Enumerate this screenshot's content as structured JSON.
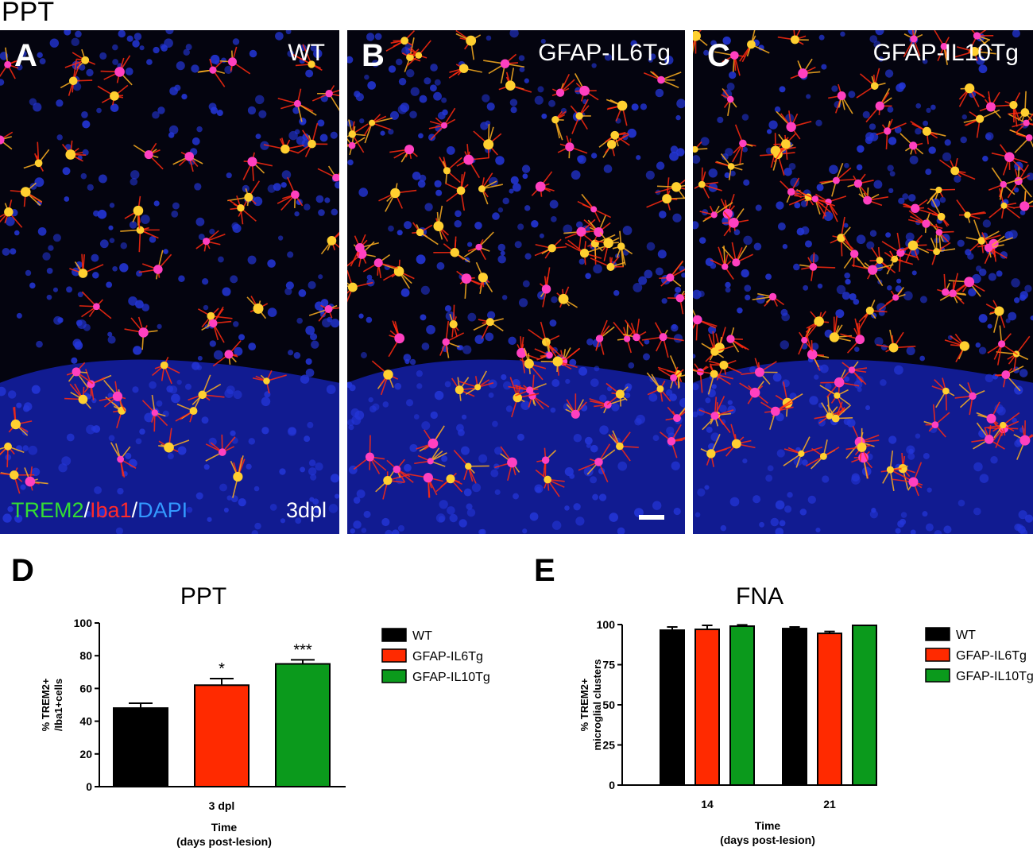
{
  "figure_title": "PPT",
  "panels": [
    {
      "letter": "A",
      "label": "WT"
    },
    {
      "letter": "B",
      "label": "GFAP-IL6Tg"
    },
    {
      "letter": "C",
      "label": "GFAP-IL10Tg"
    }
  ],
  "stain": {
    "trem2": "TREM2",
    "iba1": "Iba1",
    "dapi": "DAPI",
    "sep": "/"
  },
  "dpl_label": "3dpl",
  "colors": {
    "wt": "#000000",
    "il6": "#ff2a00",
    "il10": "#0b9a1c",
    "trem2": "#33dd33",
    "iba1": "#ff2a2a",
    "dapi": "#3399ff"
  },
  "chart_data": [
    {
      "panel_letter": "D",
      "type": "bar",
      "title": "PPT",
      "ylabel_line1": "% TREM2+",
      "ylabel_line2": "/Iba1+cells",
      "xlabel_line1": "Time",
      "xlabel_line2": "(days post-lesion)",
      "categories": [
        "3 dpl"
      ],
      "ylim": [
        0,
        100
      ],
      "yticks": [
        "0",
        "20",
        "40",
        "60",
        "80",
        "100"
      ],
      "series": [
        {
          "name": "WT",
          "values": [
            48
          ],
          "errors": [
            3
          ],
          "sig": ""
        },
        {
          "name": "GFAP-IL6Tg",
          "values": [
            62
          ],
          "errors": [
            4
          ],
          "sig": "*"
        },
        {
          "name": "GFAP-IL10Tg",
          "values": [
            75
          ],
          "errors": [
            2.5
          ],
          "sig": "***"
        }
      ],
      "legend_position": "right"
    },
    {
      "panel_letter": "E",
      "type": "bar",
      "title": "FNA",
      "ylabel_line1": "% TREM2+",
      "ylabel_line2": "microglial clusters",
      "xlabel_line1": "Time",
      "xlabel_line2": "(days post-lesion)",
      "categories": [
        "14",
        "21"
      ],
      "ylim": [
        0,
        100
      ],
      "yticks": [
        "0",
        "25",
        "50",
        "75",
        "100"
      ],
      "series": [
        {
          "name": "WT",
          "values": [
            96.5,
            97.5
          ],
          "errors": [
            2,
            1
          ]
        },
        {
          "name": "GFAP-IL6Tg",
          "values": [
            97,
            94.5
          ],
          "errors": [
            2.5,
            1.2
          ]
        },
        {
          "name": "GFAP-IL10Tg",
          "values": [
            99,
            99.5
          ],
          "errors": [
            0.8,
            0
          ]
        }
      ],
      "legend_position": "right"
    }
  ]
}
